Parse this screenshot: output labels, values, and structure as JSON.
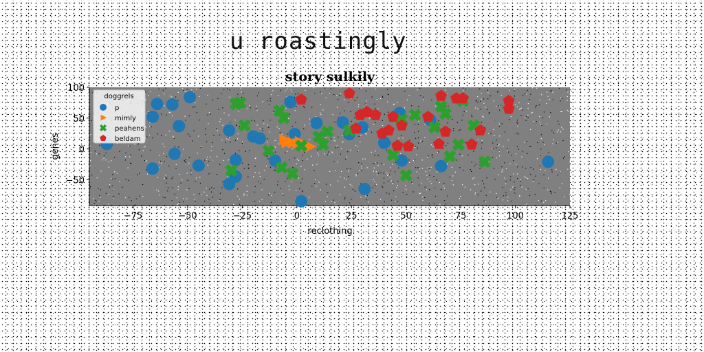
{
  "page": {
    "title": "u roastingly"
  },
  "chart_data": {
    "type": "scatter",
    "title": "story sulkily",
    "xlabel": "reclothing",
    "ylabel": "genes",
    "xlim": [
      -95,
      125
    ],
    "ylim": [
      -92,
      100
    ],
    "xticks": [
      -75,
      -50,
      -25,
      0,
      25,
      50,
      75,
      100,
      125
    ],
    "yticks": [
      -50,
      0,
      50,
      100
    ],
    "plot_background": "#808080",
    "grid": false,
    "legend": {
      "title": "doggrels",
      "placement": "upper-left"
    },
    "series": [
      {
        "name": "p",
        "marker": "circle",
        "color": "#1f77b4",
        "points": [
          [
            -87,
            8
          ],
          [
            -66,
            -32
          ],
          [
            -66,
            52
          ],
          [
            -64,
            73
          ],
          [
            -57,
            72
          ],
          [
            -56,
            -8
          ],
          [
            -54,
            37
          ],
          [
            -49,
            84
          ],
          [
            -45,
            -27
          ],
          [
            -31,
            30
          ],
          [
            -31,
            -57
          ],
          [
            -28,
            -45
          ],
          [
            -28,
            -18
          ],
          [
            -20,
            20
          ],
          [
            -17,
            17
          ],
          [
            -10,
            -19
          ],
          [
            -3,
            76
          ],
          [
            -1,
            24
          ],
          [
            2,
            -85
          ],
          [
            9,
            42
          ],
          [
            21,
            43
          ],
          [
            24,
            24
          ],
          [
            30,
            35
          ],
          [
            31,
            -65
          ],
          [
            40,
            10
          ],
          [
            47,
            58
          ],
          [
            48,
            -19
          ],
          [
            61,
            47
          ],
          [
            66,
            -28
          ],
          [
            115,
            -21
          ]
        ]
      },
      {
        "name": "mimly",
        "marker": "triangle",
        "color": "#ff7f0e",
        "points": [
          [
            -6,
            15
          ],
          [
            -4,
            12
          ],
          [
            -2,
            10
          ],
          [
            0,
            9
          ],
          [
            2,
            7
          ],
          [
            4,
            5
          ],
          [
            6,
            4
          ],
          [
            -5,
            10
          ],
          [
            1,
            12
          ],
          [
            3,
            8
          ]
        ]
      },
      {
        "name": "peahens",
        "marker": "x",
        "color": "#2ca02c",
        "points": [
          [
            -28,
            73
          ],
          [
            -26,
            75
          ],
          [
            -24,
            38
          ],
          [
            -30,
            -35
          ],
          [
            -13,
            -3
          ],
          [
            -8,
            62
          ],
          [
            -6,
            50
          ],
          [
            -7,
            -30
          ],
          [
            -2,
            -40
          ],
          [
            2,
            5
          ],
          [
            10,
            20
          ],
          [
            12,
            7
          ],
          [
            14,
            28
          ],
          [
            24,
            30
          ],
          [
            44,
            -10
          ],
          [
            48,
            48
          ],
          [
            50,
            -43
          ],
          [
            54,
            55
          ],
          [
            63,
            35
          ],
          [
            66,
            69
          ],
          [
            68,
            57
          ],
          [
            70,
            -12
          ],
          [
            74,
            7
          ],
          [
            76,
            78
          ],
          [
            81,
            38
          ],
          [
            86,
            -21
          ]
        ]
      },
      {
        "name": "beldam",
        "marker": "pentagon",
        "color": "#d62728",
        "points": [
          [
            2,
            80
          ],
          [
            24,
            90
          ],
          [
            27,
            33
          ],
          [
            29,
            55
          ],
          [
            32,
            60
          ],
          [
            36,
            55
          ],
          [
            39,
            25
          ],
          [
            42,
            30
          ],
          [
            44,
            52
          ],
          [
            46,
            5
          ],
          [
            48,
            38
          ],
          [
            51,
            4
          ],
          [
            60,
            52
          ],
          [
            65,
            8
          ],
          [
            66,
            86
          ],
          [
            68,
            28
          ],
          [
            73,
            82
          ],
          [
            76,
            82
          ],
          [
            80,
            7
          ],
          [
            84,
            30
          ],
          [
            97,
            65
          ],
          [
            97,
            78
          ]
        ]
      }
    ]
  }
}
